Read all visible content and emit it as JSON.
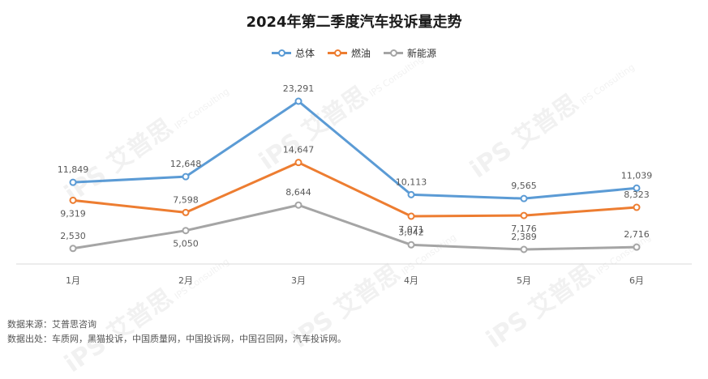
{
  "chart_data": {
    "type": "line",
    "title": "2024年第二季度汽车投诉量走势",
    "categories": [
      "1月",
      "2月",
      "3月",
      "4月",
      "5月",
      "6月"
    ],
    "series": [
      {
        "name": "总体",
        "color": "#5B9BD5",
        "values": [
          11849,
          12648,
          23291,
          10113,
          9565,
          11039
        ],
        "labels": [
          "11,849",
          "12,648",
          "23,291",
          "10,113",
          "9,565",
          "11,039"
        ]
      },
      {
        "name": "燃油",
        "color": "#ED7D31",
        "values": [
          9319,
          7598,
          14647,
          7071,
          7176,
          8323
        ],
        "labels": [
          "9,319",
          "7,598",
          "14,647",
          "7,071",
          "7,176",
          "8,323"
        ]
      },
      {
        "name": "新能源",
        "color": "#A5A5A5",
        "values": [
          2530,
          5050,
          8644,
          3042,
          2389,
          2716
        ],
        "labels": [
          "2,530",
          "5,050",
          "8,644",
          "3,042",
          "2,389",
          "2,716"
        ]
      }
    ],
    "legend_position": "top-center",
    "grid": false,
    "ylim": [
      0,
      25000
    ]
  },
  "footer": {
    "source": "数据来源：艾普思咨询",
    "origin": "数据出处：车质网，黑猫投诉，中国质量网，中国投诉网，中国召回网，汽车投诉网。"
  },
  "watermark": {
    "logo": "iPS 艾普思",
    "sub": "IPS Consulting"
  }
}
